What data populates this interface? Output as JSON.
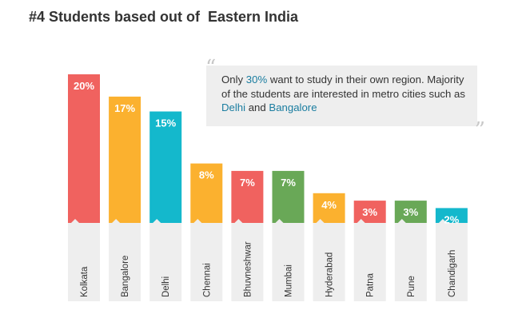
{
  "title": "#4 Students based out of  Eastern India",
  "callout": {
    "pre": "Only ",
    "pct": "30%",
    "mid": " want to study in their own region. Majority of the students are interested in metro cities such as ",
    "city1": "Delhi",
    "and": " and ",
    "city2": "Bangalore",
    "open_quote": "“",
    "close_quote": "”"
  },
  "colors": {
    "red": "#f0625f",
    "orange": "#fbb12f",
    "teal": "#14b8cc",
    "green": "#69a857",
    "label_bg": "#eeeeee",
    "highlight": "#1a7da0"
  },
  "chart_data": {
    "type": "bar",
    "title": "#4 Students based out of  Eastern India",
    "xlabel": "",
    "ylabel": "",
    "ylim": [
      0,
      20
    ],
    "grid": false,
    "categories": [
      "Kolkata",
      "Bangalore",
      "Delhi",
      "Chennai",
      "Bhuvneshwar",
      "Mumbai",
      "Hyderabad",
      "Patna",
      "Pune",
      "Chandigarh"
    ],
    "values": [
      20,
      17,
      15,
      8,
      7,
      7,
      4,
      3,
      3,
      2
    ],
    "value_labels": [
      "20%",
      "17%",
      "15%",
      "8%",
      "7%",
      "7%",
      "4%",
      "3%",
      "3%",
      "2%"
    ],
    "bar_colors": [
      "#f0625f",
      "#fbb12f",
      "#14b8cc",
      "#fbb12f",
      "#f0625f",
      "#69a857",
      "#fbb12f",
      "#f0625f",
      "#69a857",
      "#14b8cc"
    ]
  }
}
